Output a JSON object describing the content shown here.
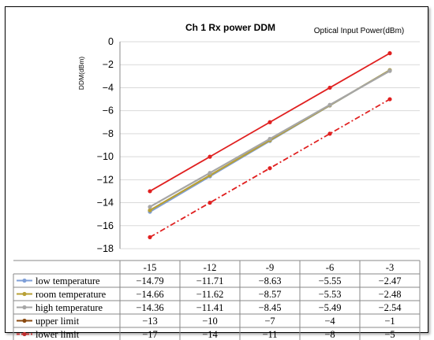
{
  "chart_data": {
    "type": "line",
    "title": "Ch 1 Rx power DDM",
    "xlabel": "Optical Input Power(dBm)",
    "ylabel": "DDM(dBm)",
    "x": [
      -15,
      -12,
      -9,
      -6,
      -3
    ],
    "x_tick_labels": [
      "-15",
      "-12",
      "-9",
      "-6",
      "-3"
    ],
    "ylim": [
      -18,
      0
    ],
    "y_ticks": [
      0,
      -2,
      -4,
      -6,
      -8,
      -10,
      -12,
      -14,
      -16,
      -18
    ],
    "y_tick_labels": [
      "0",
      "−2",
      "−4",
      "−6",
      "−8",
      "−10",
      "−12",
      "−14",
      "−16",
      "−18"
    ],
    "grid": "horizontal",
    "legend": "data-table-below",
    "series": [
      {
        "name": "low temperature",
        "values": [
          -14.79,
          -11.71,
          -8.63,
          -5.55,
          -2.47
        ],
        "labels": [
          "−14.79",
          "−11.71",
          "−8.63",
          "−5.55",
          "−2.47"
        ],
        "color": "#7f9fd8",
        "style": "solid",
        "marker": "circle"
      },
      {
        "name": "room temperature",
        "values": [
          -14.66,
          -11.62,
          -8.57,
          -5.53,
          -2.48
        ],
        "labels": [
          "−14.66",
          "−11.62",
          "−8.57",
          "−5.53",
          "−2.48"
        ],
        "color": "#b8a035",
        "style": "solid",
        "marker": "circle"
      },
      {
        "name": "high temperature",
        "values": [
          -14.36,
          -11.41,
          -8.45,
          -5.49,
          -2.54
        ],
        "labels": [
          "−14.36",
          "−11.41",
          "−8.45",
          "−5.49",
          "−2.54"
        ],
        "color": "#a6a6a6",
        "style": "solid",
        "marker": "circle"
      },
      {
        "name": "upper limit",
        "values": [
          -13,
          -10,
          -7,
          -4,
          -1
        ],
        "labels": [
          "−13",
          "−10",
          "−7",
          "−4",
          "−1"
        ],
        "color": "#e02020",
        "legend_color": "#8a4a10",
        "style": "solid",
        "marker": "circle"
      },
      {
        "name": "lower limit",
        "values": [
          -17,
          -14,
          -11,
          -8,
          -5
        ],
        "labels": [
          "−17",
          "−14",
          "−11",
          "−8",
          "−5"
        ],
        "color": "#e02020",
        "legend_color": "#c03030",
        "style": "dashdot",
        "marker": "circle"
      }
    ]
  }
}
